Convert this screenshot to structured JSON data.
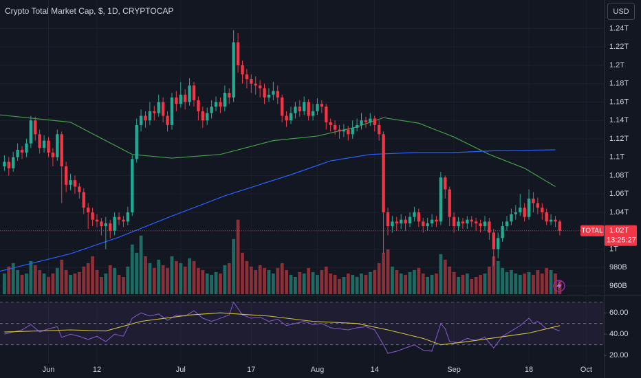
{
  "chart_data": {
    "type": "candlestick",
    "title": "Crypto Total Market Cap, $, 1D, CRYPTOCAP",
    "currency": "USD",
    "symbol": "TOTAL",
    "last_price": {
      "value": 1020,
      "label": "1.02T"
    },
    "countdown": "13:25:27",
    "up_color": "#22ab94",
    "down_color": "#f23645",
    "volume_up_color": "#1f6b64",
    "volume_down_color": "#8a3039",
    "grid": true,
    "xlim": [
      -1,
      136
    ],
    "xticks": [
      {
        "value": 10,
        "label": "Jun"
      },
      {
        "value": 21,
        "label": "12"
      },
      {
        "value": 40,
        "label": "Jul"
      },
      {
        "value": 56,
        "label": "17"
      },
      {
        "value": 71,
        "label": "Aug"
      },
      {
        "value": 84,
        "label": "14"
      },
      {
        "value": 102,
        "label": "Sep"
      },
      {
        "value": 119,
        "label": "18"
      },
      {
        "value": 132,
        "label": "Oct"
      }
    ],
    "ylim": [
      951,
      1271
    ],
    "yticks": [
      {
        "value": 1240,
        "label": "1.24T"
      },
      {
        "value": 1220,
        "label": "1.22T"
      },
      {
        "value": 1200,
        "label": "1.2T"
      },
      {
        "value": 1180,
        "label": "1.18T"
      },
      {
        "value": 1160,
        "label": "1.16T"
      },
      {
        "value": 1140,
        "label": "1.14T"
      },
      {
        "value": 1120,
        "label": "1.12T"
      },
      {
        "value": 1100,
        "label": "1.1T"
      },
      {
        "value": 1080,
        "label": "1.08T"
      },
      {
        "value": 1060,
        "label": "1.06T"
      },
      {
        "value": 1040,
        "label": "1.04T"
      },
      {
        "value": 1000,
        "label": "1T"
      },
      {
        "value": 980,
        "label": "980B"
      },
      {
        "value": 960,
        "label": "960B"
      }
    ],
    "vlim": [
      0,
      128
    ],
    "open": [
      1090,
      1095,
      1088,
      1100,
      1108,
      1105,
      1115,
      1140,
      1125,
      1110,
      1118,
      1105,
      1100,
      1125,
      1090,
      1070,
      1075,
      1068,
      1062,
      1045,
      1040,
      1032,
      1030,
      1025,
      1028,
      1020,
      1035,
      1032,
      1030,
      1040,
      1098,
      1135,
      1145,
      1140,
      1150,
      1148,
      1160,
      1145,
      1135,
      1165,
      1158,
      1168,
      1160,
      1178,
      1162,
      1150,
      1140,
      1148,
      1155,
      1160,
      1155,
      1170,
      1165,
      1225,
      1200,
      1190,
      1185,
      1180,
      1178,
      1175,
      1165,
      1168,
      1172,
      1165,
      1145,
      1140,
      1148,
      1155,
      1150,
      1160,
      1145,
      1150,
      1158,
      1155,
      1138,
      1135,
      1130,
      1128,
      1130,
      1125,
      1132,
      1135,
      1140,
      1138,
      1142,
      1135,
      1125,
      1040,
      1025,
      1030,
      1028,
      1032,
      1028,
      1035,
      1040,
      1030,
      1025,
      1028,
      1032,
      1030,
      1078,
      1065,
      1035,
      1025,
      1030,
      1028,
      1032,
      1030,
      1028,
      1025,
      1030,
      1018,
      1000,
      1012,
      1025,
      1030,
      1038,
      1040,
      1045,
      1035,
      1055,
      1050,
      1045,
      1040,
      1030,
      1032,
      1030
    ],
    "high": [
      1102,
      1100,
      1106,
      1115,
      1112,
      1120,
      1145,
      1144,
      1130,
      1124,
      1122,
      1110,
      1130,
      1128,
      1095,
      1082,
      1080,
      1072,
      1066,
      1050,
      1045,
      1038,
      1034,
      1035,
      1032,
      1040,
      1040,
      1036,
      1046,
      1102,
      1142,
      1152,
      1150,
      1160,
      1156,
      1168,
      1165,
      1150,
      1170,
      1172,
      1182,
      1174,
      1186,
      1182,
      1166,
      1155,
      1154,
      1162,
      1166,
      1165,
      1178,
      1175,
      1238,
      1235,
      1205,
      1196,
      1190,
      1188,
      1184,
      1180,
      1175,
      1182,
      1178,
      1168,
      1150,
      1155,
      1160,
      1162,
      1166,
      1163,
      1158,
      1164,
      1162,
      1158,
      1142,
      1140,
      1135,
      1136,
      1134,
      1140,
      1142,
      1148,
      1144,
      1148,
      1145,
      1140,
      1128,
      1045,
      1036,
      1035,
      1038,
      1036,
      1040,
      1046,
      1044,
      1034,
      1034,
      1038,
      1036,
      1084,
      1080,
      1068,
      1040,
      1035,
      1034,
      1036,
      1036,
      1034,
      1032,
      1036,
      1034,
      1022,
      1018,
      1030,
      1036,
      1044,
      1048,
      1060,
      1050,
      1065,
      1062,
      1056,
      1050,
      1044,
      1038,
      1036,
      1032
    ],
    "low": [
      1085,
      1080,
      1084,
      1096,
      1098,
      1100,
      1110,
      1118,
      1104,
      1105,
      1100,
      1090,
      1096,
      1050,
      1062,
      1064,
      1060,
      1055,
      1038,
      1022,
      1025,
      1024,
      1015,
      1000,
      1012,
      1015,
      1026,
      1024,
      1026,
      1036,
      1094,
      1128,
      1132,
      1135,
      1140,
      1144,
      1138,
      1128,
      1130,
      1150,
      1154,
      1152,
      1156,
      1155,
      1140,
      1132,
      1135,
      1142,
      1150,
      1148,
      1150,
      1158,
      1160,
      1192,
      1180,
      1175,
      1170,
      1168,
      1165,
      1158,
      1160,
      1162,
      1158,
      1138,
      1133,
      1136,
      1142,
      1144,
      1146,
      1140,
      1140,
      1146,
      1148,
      1130,
      1128,
      1124,
      1120,
      1122,
      1118,
      1120,
      1128,
      1130,
      1132,
      1134,
      1128,
      1118,
      995,
      1015,
      1018,
      1020,
      1022,
      1020,
      1024,
      1030,
      1024,
      1018,
      1020,
      1024,
      1024,
      1026,
      1055,
      1025,
      1018,
      1020,
      1022,
      1022,
      1024,
      1020,
      1018,
      1020,
      1010,
      982,
      990,
      1008,
      1020,
      1026,
      1032,
      1036,
      1030,
      1032,
      1040,
      1038,
      1032,
      1026,
      1026,
      1024,
      1015
    ],
    "close": [
      1095,
      1088,
      1100,
      1108,
      1105,
      1115,
      1140,
      1125,
      1110,
      1118,
      1105,
      1100,
      1125,
      1090,
      1070,
      1075,
      1068,
      1062,
      1045,
      1040,
      1032,
      1030,
      1025,
      1028,
      1020,
      1035,
      1032,
      1030,
      1040,
      1098,
      1135,
      1145,
      1140,
      1150,
      1148,
      1160,
      1145,
      1135,
      1165,
      1158,
      1168,
      1160,
      1178,
      1162,
      1150,
      1140,
      1148,
      1155,
      1160,
      1155,
      1170,
      1165,
      1225,
      1200,
      1190,
      1185,
      1180,
      1178,
      1175,
      1165,
      1168,
      1172,
      1165,
      1145,
      1140,
      1148,
      1155,
      1150,
      1160,
      1145,
      1150,
      1158,
      1155,
      1138,
      1135,
      1130,
      1128,
      1130,
      1125,
      1132,
      1135,
      1140,
      1138,
      1142,
      1135,
      1125,
      1040,
      1025,
      1030,
      1028,
      1032,
      1028,
      1035,
      1040,
      1030,
      1025,
      1028,
      1032,
      1030,
      1078,
      1065,
      1035,
      1025,
      1030,
      1028,
      1032,
      1030,
      1028,
      1025,
      1030,
      1018,
      1000,
      1012,
      1025,
      1030,
      1038,
      1040,
      1045,
      1035,
      1055,
      1050,
      1045,
      1040,
      1030,
      1032,
      1030,
      1020
    ],
    "volume": [
      30,
      40,
      45,
      35,
      28,
      30,
      48,
      42,
      35,
      30,
      25,
      30,
      38,
      50,
      35,
      28,
      30,
      32,
      40,
      45,
      55,
      35,
      25,
      30,
      42,
      38,
      28,
      25,
      40,
      72,
      60,
      85,
      55,
      45,
      38,
      50,
      42,
      38,
      55,
      48,
      45,
      40,
      52,
      48,
      38,
      35,
      30,
      28,
      32,
      30,
      42,
      45,
      80,
      108,
      60,
      48,
      40,
      35,
      42,
      38,
      35,
      30,
      38,
      45,
      35,
      28,
      25,
      32,
      30,
      38,
      32,
      28,
      35,
      40,
      30,
      28,
      22,
      25,
      30,
      28,
      25,
      30,
      28,
      32,
      35,
      45,
      60,
      65,
      40,
      35,
      30,
      28,
      32,
      35,
      38,
      30,
      25,
      28,
      30,
      58,
      50,
      40,
      32,
      25,
      28,
      30,
      22,
      25,
      28,
      30,
      40,
      55,
      48,
      38,
      32,
      35,
      30,
      28,
      30,
      32,
      28,
      35,
      30,
      38,
      35,
      30,
      20
    ],
    "moving_averages": [
      {
        "color": "#43a047",
        "x": [
          -1,
          15,
          29,
          38,
          49,
          61,
          71,
          80,
          86,
          94,
          102,
          110,
          118,
          125
        ],
        "values": [
          1146,
          1138,
          1103,
          1099,
          1103,
          1118,
          1123,
          1133,
          1143,
          1137,
          1122,
          1103,
          1088,
          1068
        ]
      },
      {
        "color": "#2962ff",
        "x": [
          -1,
          15,
          26,
          38,
          50,
          65,
          74,
          83,
          93,
          102,
          111,
          125
        ],
        "values": [
          976,
          995,
          1013,
          1036,
          1058,
          1081,
          1096,
          1103,
          1105,
          1105,
          1107,
          1108
        ]
      }
    ],
    "rsi": {
      "ylim": [
        13,
        75
      ],
      "yticks": [
        {
          "value": 60,
          "label": "60.00"
        },
        {
          "value": 40,
          "label": "40.00"
        },
        {
          "value": 20,
          "label": "20.00"
        }
      ],
      "levels": [
        70,
        50,
        30
      ],
      "line": {
        "color": "#7e57c2",
        "x": [
          0,
          2,
          4,
          6,
          8,
          10,
          12,
          13,
          15,
          17,
          19,
          21,
          23,
          25,
          27,
          29,
          31,
          33,
          35,
          37,
          39,
          41,
          43,
          45,
          47,
          49,
          51,
          52,
          54,
          56,
          58,
          60,
          62,
          64,
          66,
          68,
          70,
          72,
          74,
          76,
          78,
          80,
          82,
          84,
          86,
          87,
          89,
          91,
          93,
          95,
          97,
          99,
          100,
          101,
          103,
          105,
          107,
          109,
          111,
          113,
          115,
          117,
          119,
          120,
          121,
          123,
          124,
          126
        ],
        "values": [
          40,
          42,
          44,
          49,
          42,
          45,
          47,
          37,
          40,
          38,
          35,
          38,
          33,
          40,
          38,
          55,
          60,
          57,
          59,
          53,
          58,
          57,
          62,
          55,
          52,
          55,
          58,
          70,
          58,
          55,
          56,
          52,
          54,
          48,
          50,
          52,
          49,
          50,
          46,
          45,
          44,
          46,
          47,
          44,
          30,
          22,
          24,
          27,
          30,
          25,
          24,
          50,
          45,
          33,
          32,
          36,
          34,
          37,
          27,
          38,
          43,
          48,
          55,
          50,
          52,
          45,
          46,
          43
        ]
      },
      "ma": {
        "color": "#d4c43c",
        "x": [
          0,
          15,
          23,
          31,
          42,
          49,
          60,
          70,
          80,
          87,
          95,
          99,
          105,
          112,
          119,
          126
        ],
        "values": [
          42,
          44,
          43,
          52,
          58,
          60,
          57,
          52,
          50,
          44,
          36,
          30,
          33,
          37,
          41,
          48
        ]
      }
    }
  }
}
